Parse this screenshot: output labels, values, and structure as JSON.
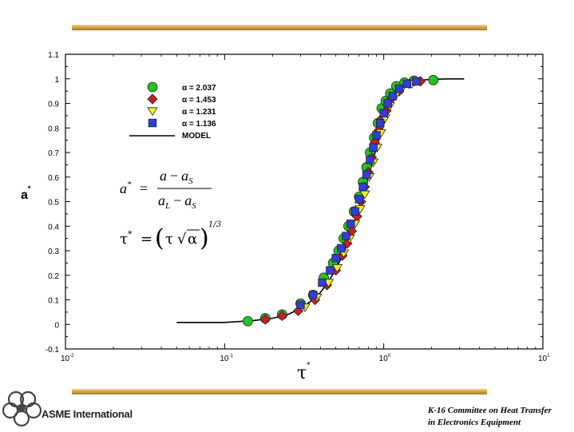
{
  "chart_data": {
    "type": "scatter",
    "x_scale": "log",
    "xlim": [
      0.01,
      10
    ],
    "ylim": [
      -0.1,
      1.1
    ],
    "x_ticks": [
      {
        "value": 0.01,
        "base": "10",
        "exp": "-2"
      },
      {
        "value": 0.1,
        "base": "10",
        "exp": "-1"
      },
      {
        "value": 1,
        "base": "10",
        "exp": "0"
      },
      {
        "value": 10,
        "base": "10",
        "exp": "1"
      }
    ],
    "y_ticks": [
      "-0.1",
      "0",
      "0.1",
      "0.2",
      "0.3",
      "0.4",
      "0.5",
      "0.6",
      "0.7",
      "0.8",
      "0.9",
      "1",
      "1.1"
    ],
    "y_tick_values": [
      -0.1,
      0,
      0.1,
      0.2,
      0.3,
      0.4,
      0.5,
      0.6,
      0.7,
      0.8,
      0.9,
      1.0,
      1.1
    ],
    "xlabel": {
      "base": "τ",
      "sup": "*"
    },
    "ylabel": {
      "base": "a",
      "sup": "*"
    },
    "grid": false,
    "legend_position": "top-left",
    "series": [
      {
        "name": "α = 2.037",
        "marker": "circle",
        "color": "#22c322",
        "x": [
          0.14,
          0.18,
          0.23,
          0.3,
          0.36,
          0.42,
          0.48,
          0.52,
          0.56,
          0.6,
          0.65,
          0.7,
          0.74,
          0.78,
          0.82,
          0.87,
          0.92,
          0.97,
          1.03,
          1.1,
          1.2,
          1.35,
          1.55,
          2.05
        ],
        "y": [
          0.013,
          0.025,
          0.04,
          0.085,
          0.12,
          0.19,
          0.25,
          0.3,
          0.35,
          0.4,
          0.46,
          0.52,
          0.58,
          0.64,
          0.7,
          0.76,
          0.82,
          0.88,
          0.91,
          0.94,
          0.97,
          0.985,
          0.992,
          0.995
        ]
      },
      {
        "name": "α = 1.453",
        "marker": "diamond",
        "color": "#cc1f1f",
        "x": [
          0.18,
          0.23,
          0.29,
          0.37,
          0.44,
          0.5,
          0.55,
          0.59,
          0.63,
          0.68,
          0.72,
          0.76,
          0.8,
          0.84,
          0.88,
          0.93,
          0.98,
          1.04,
          1.12,
          1.25,
          1.45,
          1.7
        ],
        "y": [
          0.02,
          0.035,
          0.055,
          0.1,
          0.16,
          0.22,
          0.28,
          0.33,
          0.38,
          0.44,
          0.5,
          0.56,
          0.62,
          0.68,
          0.74,
          0.79,
          0.84,
          0.87,
          0.92,
          0.95,
          0.98,
          0.99
        ]
      },
      {
        "name": "α = 1.231",
        "marker": "triangle-down",
        "color": "#f2ec2a",
        "x": [
          0.32,
          0.38,
          0.45,
          0.51,
          0.56,
          0.61,
          0.66,
          0.71,
          0.76,
          0.81,
          0.86,
          0.91,
          0.96,
          1.02,
          1.09,
          1.18,
          1.3,
          1.5
        ],
        "y": [
          0.07,
          0.11,
          0.17,
          0.23,
          0.29,
          0.35,
          0.41,
          0.47,
          0.53,
          0.6,
          0.66,
          0.72,
          0.78,
          0.84,
          0.89,
          0.93,
          0.96,
          0.98
        ]
      },
      {
        "name": "α = 1.136",
        "marker": "square",
        "color": "#2f3fd8",
        "x": [
          0.3,
          0.36,
          0.41,
          0.46,
          0.5,
          0.54,
          0.58,
          0.62,
          0.66,
          0.7,
          0.74,
          0.78,
          0.82,
          0.86,
          0.9,
          0.95,
          1.0,
          1.06,
          1.14,
          1.25,
          1.4,
          1.6
        ],
        "y": [
          0.08,
          0.12,
          0.17,
          0.22,
          0.27,
          0.31,
          0.36,
          0.41,
          0.46,
          0.51,
          0.56,
          0.61,
          0.67,
          0.72,
          0.77,
          0.82,
          0.86,
          0.9,
          0.93,
          0.96,
          0.98,
          0.99
        ]
      },
      {
        "name": "MODEL",
        "marker": "line",
        "color": "#000000",
        "x": [
          0.05,
          0.1,
          0.15,
          0.2,
          0.25,
          0.3,
          0.35,
          0.4,
          0.45,
          0.5,
          0.55,
          0.6,
          0.65,
          0.7,
          0.75,
          0.8,
          0.85,
          0.9,
          0.95,
          1.0,
          1.05,
          1.1,
          1.15,
          1.2,
          1.3,
          1.4,
          1.5,
          1.6,
          1.8,
          2.0,
          2.5,
          3.2
        ],
        "y": [
          0.008,
          0.008,
          0.015,
          0.025,
          0.04,
          0.065,
          0.095,
          0.13,
          0.175,
          0.225,
          0.28,
          0.34,
          0.405,
          0.47,
          0.535,
          0.6,
          0.66,
          0.72,
          0.77,
          0.815,
          0.855,
          0.885,
          0.91,
          0.93,
          0.96,
          0.975,
          0.985,
          0.99,
          0.996,
          0.998,
          1.0,
          1.0
        ]
      }
    ]
  },
  "equations": {
    "eq1": {
      "lhs": "a",
      "lhs_sup": "*",
      "equals": "=",
      "num_a": "a",
      "num_minus": "−",
      "num_b": "a",
      "num_b_sub": "S",
      "den_a": "a",
      "den_a_sub": "L",
      "den_minus": "−",
      "den_b": "a",
      "den_b_sub": "S"
    },
    "eq2": {
      "lhs": "τ",
      "lhs_sup": "*",
      "equals": "=",
      "tau": "τ",
      "sqrt": "√",
      "alpha": "α",
      "exp": "1/3"
    }
  },
  "footer": {
    "logo_text": "ASME International",
    "committee_line1": "K-16 Committee on Heat Transfer",
    "committee_line2": "in Electronics Equipment"
  },
  "colors": {
    "gold_bar": "#d4a640"
  }
}
